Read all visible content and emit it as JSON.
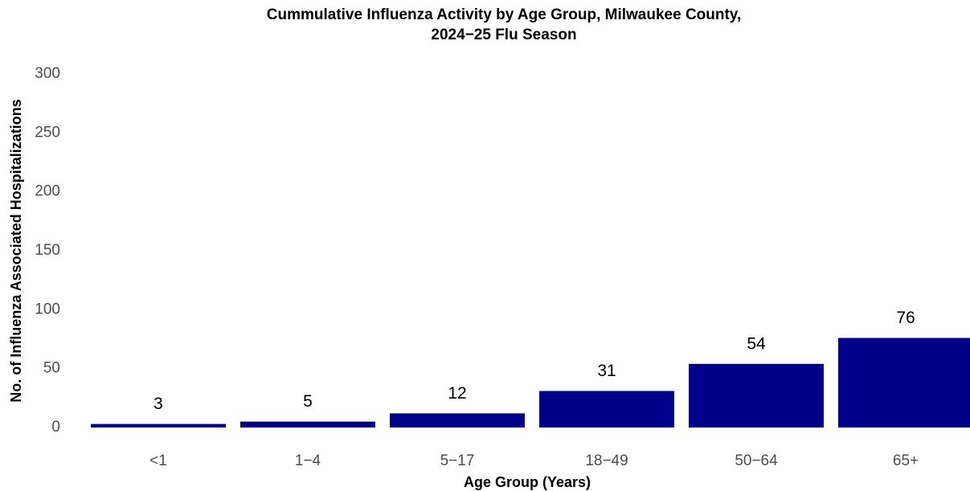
{
  "chart_data": {
    "type": "bar",
    "title": [
      "Cummulative Influenza Activity by Age Group, Milwaukee County,",
      "2024−25 Flu Season"
    ],
    "x_label": "Age Group (Years)",
    "y_label": "No. of Influenza Associated Hospitalizations",
    "categories": [
      "<1",
      "1−4",
      "5−17",
      "18−49",
      "50−64",
      "65+"
    ],
    "values": [
      3,
      5,
      12,
      31,
      54,
      76
    ],
    "color": "#00008b",
    "ylim": [
      0,
      300
    ],
    "yticks": [
      0,
      50,
      100,
      150,
      200,
      250,
      300
    ],
    "grid": false
  }
}
